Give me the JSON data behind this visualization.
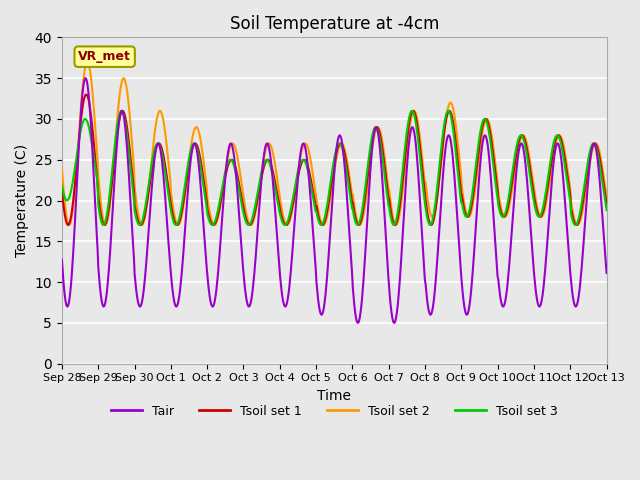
{
  "title": "Soil Temperature at -4cm",
  "xlabel": "Time",
  "ylabel": "Temperature (C)",
  "ylim": [
    0,
    40
  ],
  "yticks": [
    0,
    5,
    10,
    15,
    20,
    25,
    30,
    35,
    40
  ],
  "background_color": "#e8e8e8",
  "series_colors": {
    "Tair": "#9900cc",
    "Tsoil set 1": "#cc0000",
    "Tsoil set 2": "#ff9900",
    "Tsoil set 3": "#00cc00"
  },
  "legend_labels": [
    "Tair",
    "Tsoil set 1",
    "Tsoil set 2",
    "Tsoil set 3"
  ],
  "x_tick_labels": [
    "Sep 28",
    "Sep 29",
    "Sep 30",
    "Oct 1",
    "Oct 2",
    "Oct 3",
    "Oct 4",
    "Oct 5",
    "Oct 6",
    "Oct 7",
    "Oct 8",
    "Oct 9",
    "Oct 10",
    "Oct 11",
    "Oct 12",
    "Oct 13"
  ],
  "annotation_text": "VR_met",
  "line_width": 1.5,
  "figsize": [
    6.4,
    4.8
  ],
  "dpi": 100
}
